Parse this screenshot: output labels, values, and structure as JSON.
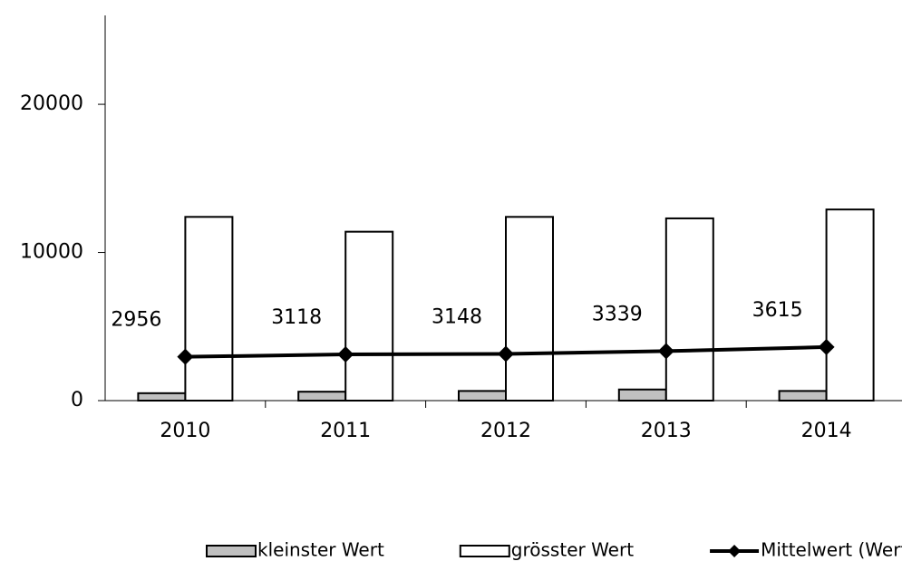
{
  "chart_data": {
    "type": "bar-line",
    "categories": [
      "2010",
      "2011",
      "2012",
      "2013",
      "2014"
    ],
    "series": [
      {
        "name": "kleinster Wert",
        "type": "bar",
        "color": "#c0c0c0",
        "values": [
          500,
          600,
          650,
          750,
          650
        ]
      },
      {
        "name": "grösster Wert",
        "type": "bar",
        "color": "#ffffff",
        "values": [
          12400,
          11400,
          12400,
          12300,
          12900
        ]
      },
      {
        "name": "Mittelwert (Wertangabe)",
        "type": "line",
        "color": "#000000",
        "values": [
          2956,
          3118,
          3148,
          3339,
          3615
        ]
      }
    ],
    "ylim": [
      0,
      26000
    ],
    "yticks": [
      0,
      10000,
      20000
    ],
    "grid": false,
    "legend": "bottom"
  }
}
